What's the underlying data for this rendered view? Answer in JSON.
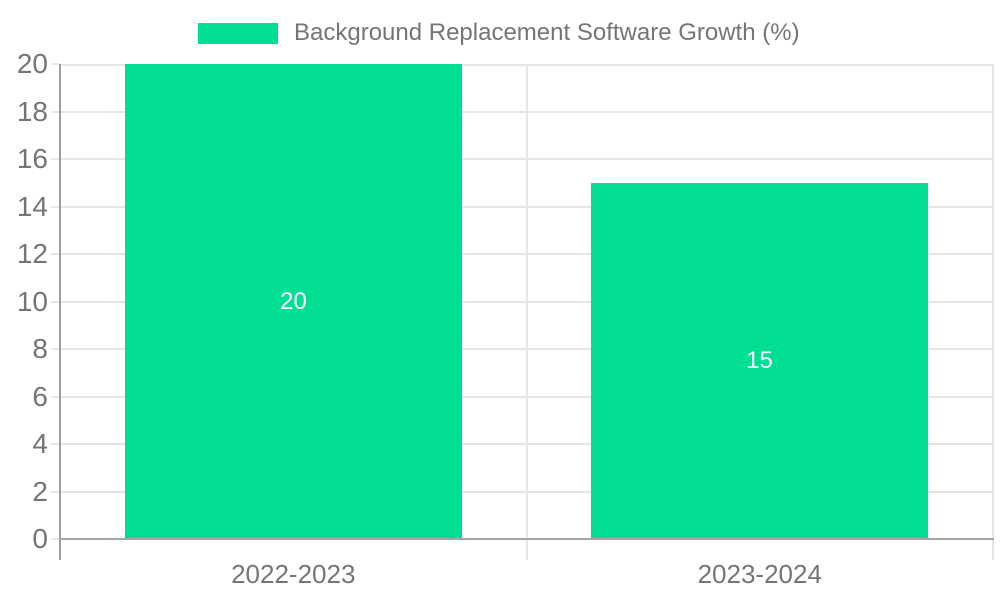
{
  "legend": {
    "label": "Background Replacement Software Growth (%)"
  },
  "colors": {
    "bar": "#00de94",
    "label_text": "#757575",
    "gridline": "#e6e6e6",
    "axis_line": "#9e9e9e",
    "baseline": "#a6a6a6",
    "value_label": "#ffffff",
    "background": "#ffffff"
  },
  "chart_data": {
    "type": "bar",
    "title": "",
    "categories": [
      "2022-2023",
      "2023-2024"
    ],
    "series": [
      {
        "name": "Background Replacement Software Growth (%)",
        "values": [
          20,
          15
        ]
      }
    ],
    "value_labels": [
      "20",
      "15"
    ],
    "ylim": [
      0,
      20
    ],
    "ytick_step": 2,
    "yticks": [
      0,
      2,
      4,
      6,
      8,
      10,
      12,
      14,
      16,
      18,
      20
    ],
    "grid": true,
    "legend_position": "top",
    "bar_width_fraction": 0.7225
  }
}
